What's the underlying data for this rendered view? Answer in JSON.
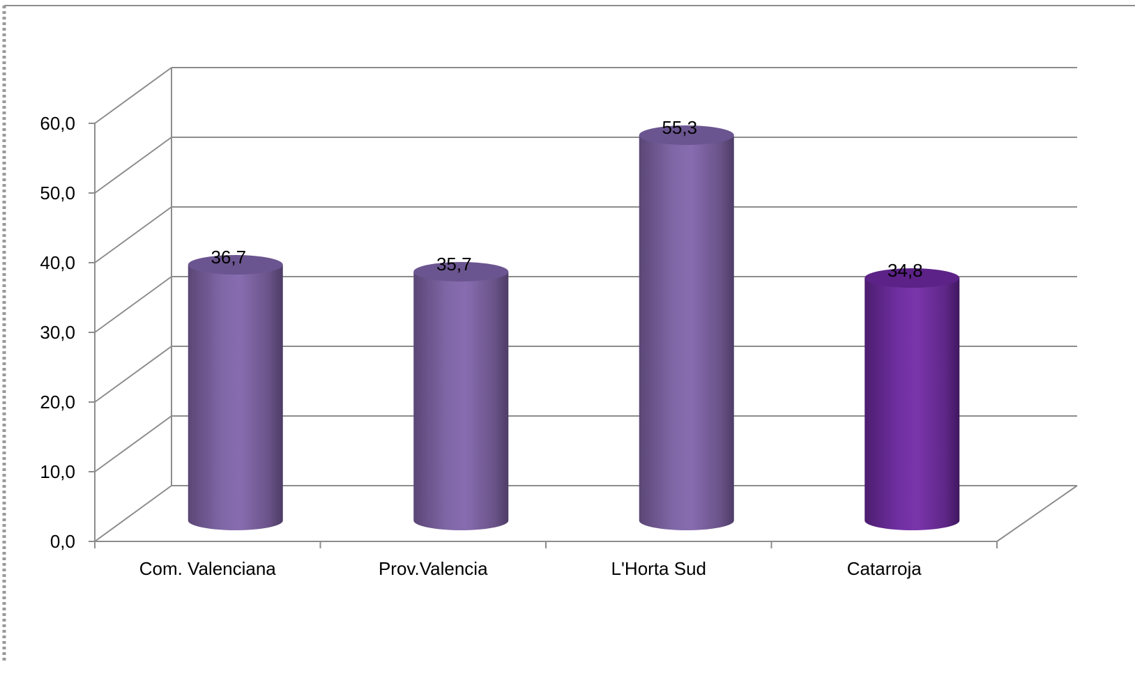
{
  "chart_data": {
    "type": "bar",
    "style": "3d-cylinder",
    "title": "",
    "xlabel": "",
    "ylabel": "",
    "categories": [
      "Com. Valenciana",
      "Prov.Valencia",
      "L'Horta Sud",
      "Catarroja"
    ],
    "values": [
      36.7,
      35.7,
      55.3,
      34.8
    ],
    "value_labels": [
      "36,7",
      "35,7",
      "55,3",
      "34,8"
    ],
    "ylim": [
      0,
      60
    ],
    "yticks": [
      0,
      10,
      20,
      30,
      40,
      50,
      60
    ],
    "ytick_labels": [
      "0,0",
      "10,0",
      "20,0",
      "30,0",
      "40,0",
      "50,0",
      "60,0"
    ],
    "grid": true,
    "legend": "none",
    "bar_colors": [
      "#8064a2",
      "#8064a2",
      "#8064a2",
      "#7030a0"
    ]
  }
}
